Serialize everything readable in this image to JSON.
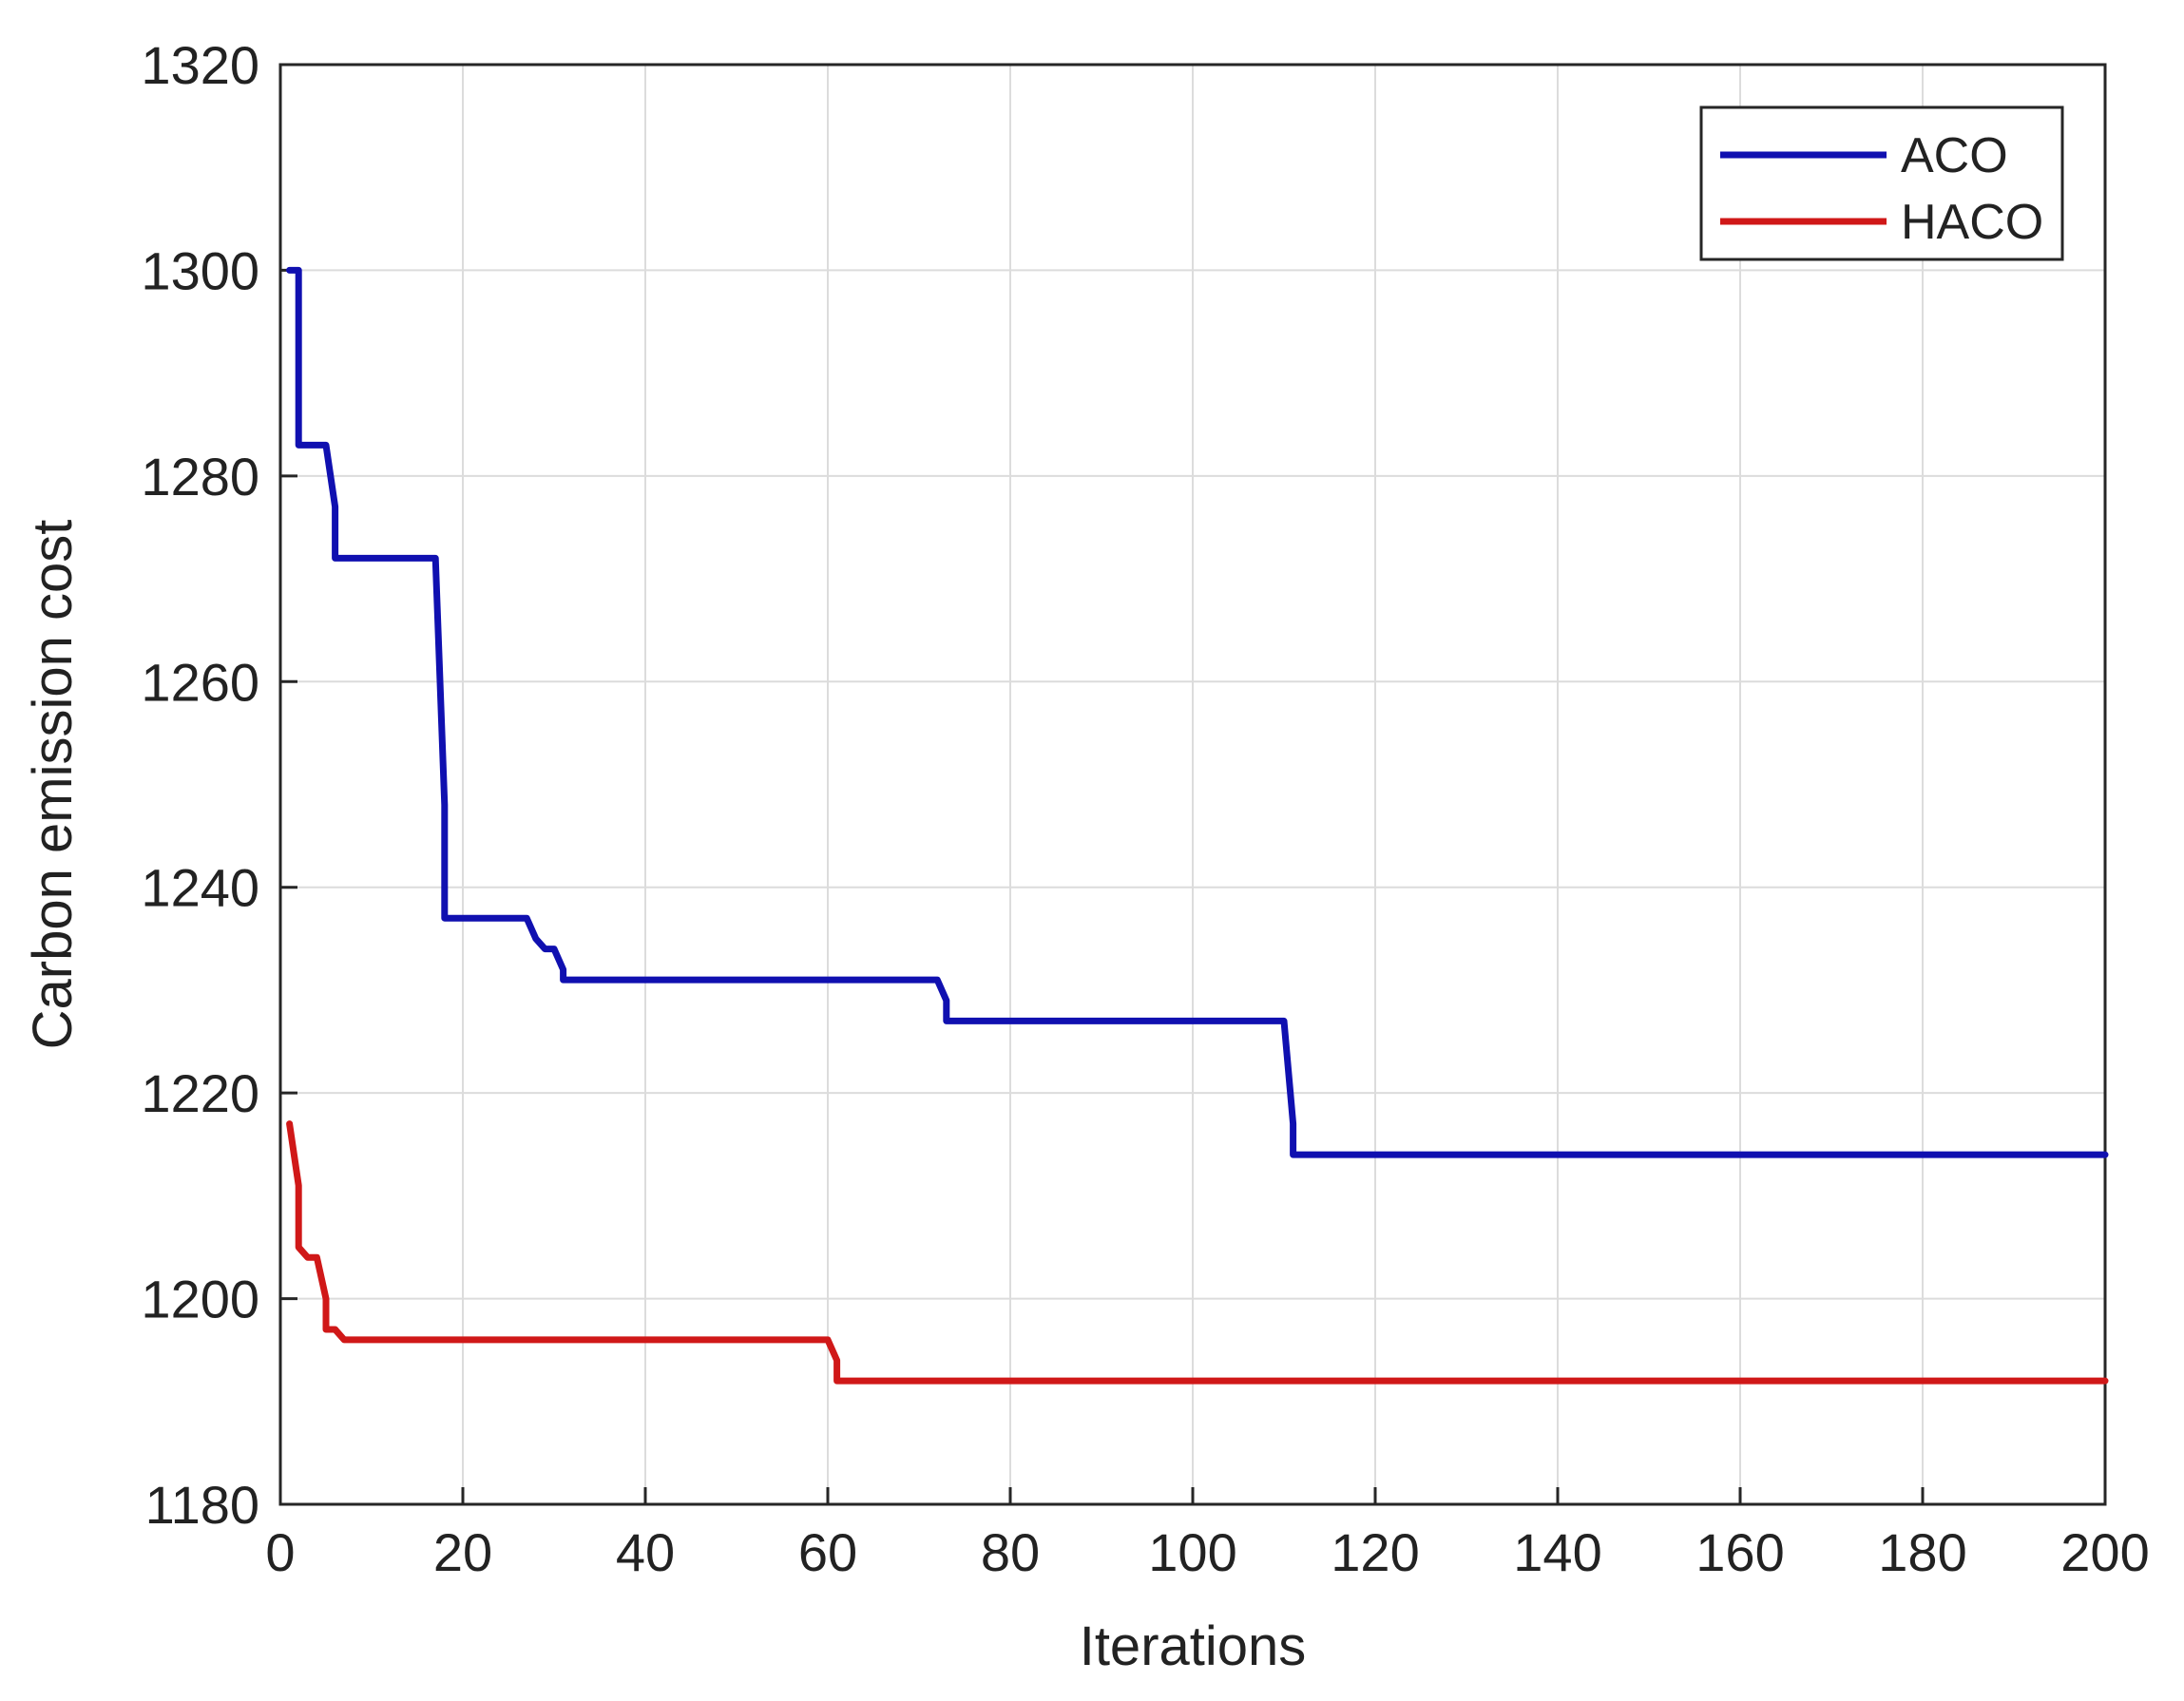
{
  "chart_data": {
    "type": "line",
    "title": "",
    "xlabel": "Iterations",
    "ylabel": "Carbon emission cost",
    "xlim": [
      0,
      200
    ],
    "ylim": [
      1180,
      1320
    ],
    "xticks": [
      0,
      20,
      40,
      60,
      80,
      100,
      120,
      140,
      160,
      180,
      200
    ],
    "yticks": [
      1180,
      1200,
      1220,
      1240,
      1260,
      1280,
      1300,
      1320
    ],
    "grid": true,
    "legend_position": "top-right",
    "series": [
      {
        "name": "ACO",
        "color": "#1010b0",
        "x": [
          1,
          2,
          2,
          5,
          6,
          6,
          17,
          18,
          18,
          27,
          28,
          29,
          30,
          31,
          31,
          72,
          73,
          73,
          110,
          111,
          111,
          200
        ],
        "y": [
          1300,
          1300,
          1283,
          1283,
          1277,
          1272,
          1272,
          1248,
          1237,
          1237,
          1235,
          1234,
          1234,
          1232,
          1231,
          1231,
          1229,
          1227,
          1227,
          1217,
          1214,
          1214
        ]
      },
      {
        "name": "HACO",
        "color": "#d01818",
        "x": [
          1,
          2,
          2,
          3,
          4,
          5,
          5,
          6,
          7,
          60,
          61,
          61,
          200
        ],
        "y": [
          1217,
          1211,
          1205,
          1204,
          1204,
          1200,
          1197,
          1197,
          1196,
          1196,
          1194,
          1192,
          1192
        ]
      }
    ]
  }
}
